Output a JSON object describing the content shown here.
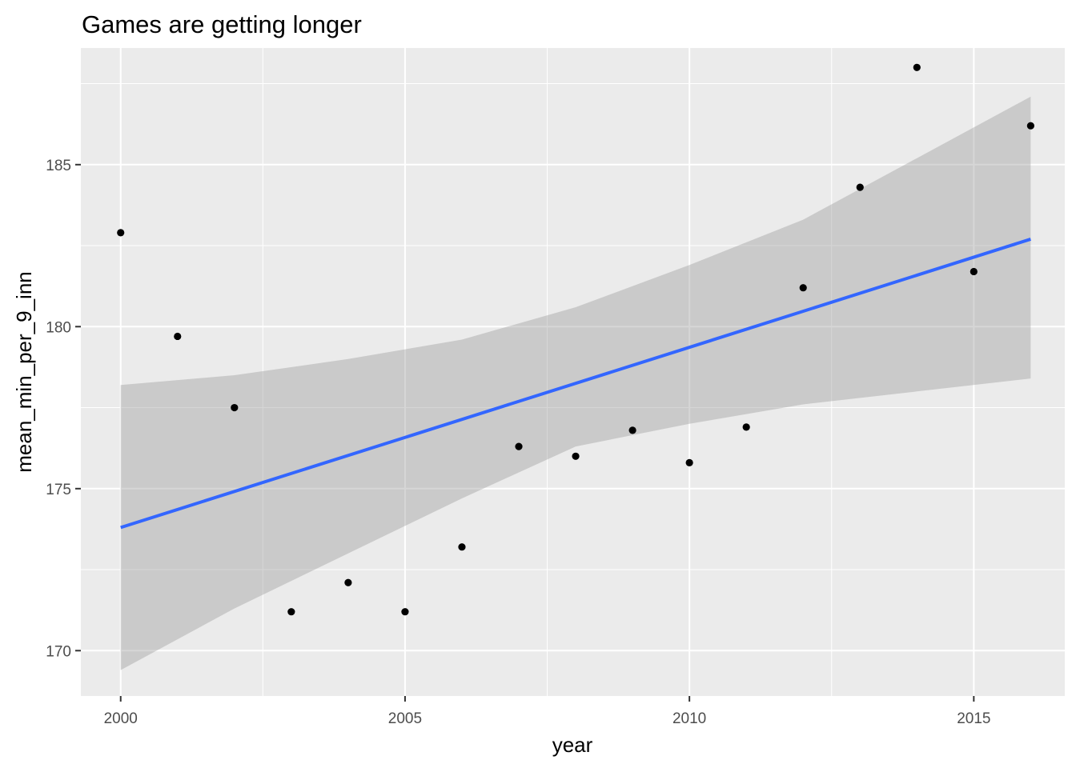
{
  "chart_data": {
    "type": "scatter",
    "title": "Games are getting longer",
    "xlabel": "year",
    "ylabel": "mean_min_per_9_inn",
    "xlim": [
      1999.3,
      2016.6
    ],
    "ylim": [
      168.6,
      188.6
    ],
    "x_major_ticks": [
      2000,
      2005,
      2010,
      2015
    ],
    "x_tick_labels": [
      "2000",
      "2005",
      "2010",
      "2015"
    ],
    "x_minor_ticks": [
      2002.5,
      2007.5,
      2012.5
    ],
    "y_major_ticks": [
      170,
      175,
      180,
      185
    ],
    "y_tick_labels": [
      "170",
      "175",
      "180",
      "185"
    ],
    "y_minor_ticks": [
      172.5,
      177.5,
      182.5,
      187.5
    ],
    "grid": true,
    "points": {
      "x": [
        2000,
        2001,
        2002,
        2003,
        2004,
        2005,
        2006,
        2007,
        2008,
        2009,
        2010,
        2011,
        2012,
        2013,
        2014,
        2015,
        2016
      ],
      "y": [
        182.9,
        179.7,
        177.5,
        171.2,
        172.1,
        171.2,
        173.2,
        176.3,
        176.0,
        176.8,
        175.8,
        176.9,
        181.2,
        184.3,
        188.0,
        181.7,
        186.2
      ]
    },
    "smooth": {
      "method": "lm",
      "x": [
        2000,
        2016
      ],
      "y": [
        173.8,
        182.7
      ]
    },
    "confidence_band": {
      "x": [
        2000,
        2002,
        2004,
        2006,
        2008,
        2010,
        2012,
        2014,
        2016
      ],
      "upper": [
        178.2,
        178.5,
        179.0,
        179.6,
        180.6,
        181.9,
        183.3,
        185.2,
        187.1
      ],
      "lower": [
        169.4,
        171.3,
        173.0,
        174.7,
        176.3,
        177.0,
        177.6,
        178.0,
        178.4
      ]
    },
    "colors": {
      "panel": "#EBEBEB",
      "grid": "#FFFFFF",
      "point": "#000000",
      "line": "#3366FF",
      "band": "#999999"
    }
  }
}
